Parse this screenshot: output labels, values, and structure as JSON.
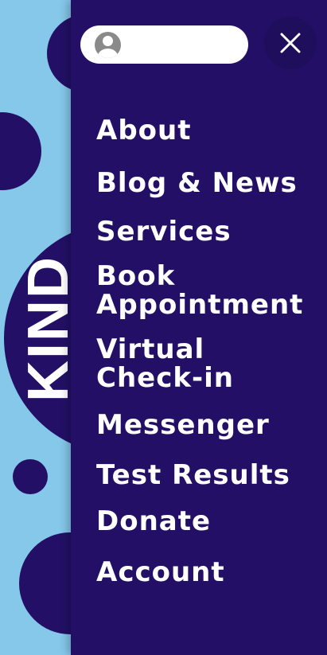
{
  "background": {
    "vertical_word": "KIND"
  },
  "menu": {
    "items": [
      {
        "label": "About"
      },
      {
        "label": "Blog & News"
      },
      {
        "label": "Services"
      },
      {
        "label": "Book",
        "label_line2": "Appointment"
      },
      {
        "label": "Virtual",
        "label_line2": "Check-in"
      },
      {
        "label": "Messenger"
      },
      {
        "label": "Test Results"
      },
      {
        "label": "Donate"
      },
      {
        "label": "Account"
      }
    ]
  },
  "header": {
    "avatar_icon": "user-avatar-icon",
    "close_icon": "close-icon"
  },
  "colors": {
    "panel": "#231066",
    "backdrop": "#86c8ea",
    "text": "#ffffff",
    "pill": "#ffffff",
    "avatar": "#8a8a8a"
  }
}
